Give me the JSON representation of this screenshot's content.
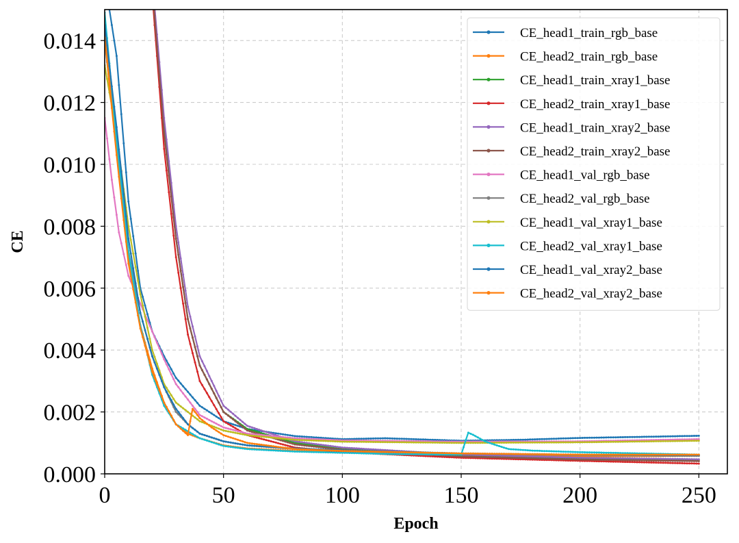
{
  "chart_data": {
    "type": "line",
    "title": "",
    "xlabel": "Epoch",
    "ylabel": "CE",
    "xlim": [
      0,
      262
    ],
    "ylim": [
      0,
      0.015
    ],
    "xticks": [
      0,
      50,
      100,
      150,
      200,
      250
    ],
    "xtick_labels": [
      "0",
      "50",
      "100",
      "150",
      "200",
      "250"
    ],
    "yticks": [
      0,
      0.002,
      0.004,
      0.006,
      0.008,
      0.01,
      0.012,
      0.014
    ],
    "ytick_labels": [
      "0.000",
      "0.002",
      "0.004",
      "0.006",
      "0.008",
      "0.010",
      "0.012",
      "0.014"
    ],
    "grid": true,
    "legend_position": "top-right",
    "series": [
      {
        "name": "CE_head1_train_rgb_base",
        "color": "#1f77b4",
        "x": [
          0,
          5,
          10,
          15,
          20,
          25,
          30,
          40,
          50,
          60,
          80,
          100,
          118,
          150,
          175,
          200,
          230,
          250
        ],
        "y": [
          0.016,
          0.0135,
          0.0088,
          0.006,
          0.0046,
          0.0038,
          0.0031,
          0.0022,
          0.0017,
          0.00145,
          0.00122,
          0.00112,
          0.00115,
          0.00107,
          0.0011,
          0.00116,
          0.0012,
          0.00123
        ]
      },
      {
        "name": "CE_head2_train_rgb_base",
        "color": "#ff7f0e",
        "x": [
          0,
          5,
          10,
          15,
          20,
          25,
          30,
          35,
          40,
          50,
          60,
          80,
          100,
          150,
          200,
          250
        ],
        "y": [
          0.0142,
          0.0106,
          0.007,
          0.0048,
          0.0034,
          0.0023,
          0.0016,
          0.0013,
          0.00115,
          0.00092,
          0.00082,
          0.00074,
          0.0007,
          0.0006,
          0.00056,
          0.00058
        ]
      },
      {
        "name": "CE_head1_train_xray1_base",
        "color": "#2ca02c",
        "x": [
          20,
          22,
          25,
          30,
          35,
          40,
          50,
          60,
          80,
          100,
          150,
          200,
          250
        ],
        "y": [
          0.0158,
          0.014,
          0.0112,
          0.0076,
          0.005,
          0.0035,
          0.002,
          0.00145,
          0.001,
          0.0008,
          0.0006,
          0.0005,
          0.00045
        ]
      },
      {
        "name": "CE_head2_train_xray1_base",
        "color": "#d62728",
        "x": [
          20,
          22,
          25,
          30,
          35,
          40,
          50,
          60,
          80,
          100,
          150,
          200,
          250
        ],
        "y": [
          0.0155,
          0.0135,
          0.0105,
          0.007,
          0.0045,
          0.003,
          0.0017,
          0.00125,
          0.00085,
          0.0007,
          0.00052,
          0.00042,
          0.00033
        ]
      },
      {
        "name": "CE_head1_train_xray2_base",
        "color": "#9467bd",
        "x": [
          20,
          22,
          25,
          30,
          35,
          40,
          50,
          60,
          80,
          100,
          150,
          200,
          250
        ],
        "y": [
          0.016,
          0.0142,
          0.0115,
          0.008,
          0.0054,
          0.0038,
          0.0022,
          0.00155,
          0.00105,
          0.00085,
          0.00062,
          0.00052,
          0.00047
        ]
      },
      {
        "name": "CE_head2_train_xray2_base",
        "color": "#8c564b",
        "x": [
          20,
          22,
          25,
          30,
          35,
          40,
          50,
          60,
          80,
          100,
          150,
          200,
          250
        ],
        "y": [
          0.0158,
          0.0138,
          0.011,
          0.0076,
          0.005,
          0.0035,
          0.002,
          0.0014,
          0.00095,
          0.00078,
          0.00056,
          0.00046,
          0.00041
        ]
      },
      {
        "name": "CE_head1_val_rgb_base",
        "color": "#e377c2",
        "x": [
          0,
          3,
          6,
          10,
          15,
          20,
          25,
          30,
          40,
          50,
          60,
          80,
          100,
          150,
          200,
          250
        ],
        "y": [
          0.0115,
          0.0095,
          0.0078,
          0.0064,
          0.0055,
          0.0046,
          0.0037,
          0.0029,
          0.0019,
          0.0015,
          0.0013,
          0.00115,
          0.00108,
          0.00104,
          0.00105,
          0.00112
        ]
      },
      {
        "name": "CE_head2_val_rgb_base",
        "color": "#7f7f7f",
        "x": [
          0,
          5,
          10,
          15,
          20,
          25,
          30,
          35,
          40,
          50,
          60,
          80,
          100,
          150,
          200,
          250
        ],
        "y": [
          0.014,
          0.0105,
          0.0072,
          0.0052,
          0.0038,
          0.0028,
          0.002,
          0.0016,
          0.0013,
          0.00105,
          0.00092,
          0.0008,
          0.00074,
          0.00065,
          0.0006,
          0.00058
        ]
      },
      {
        "name": "CE_head1_val_xray1_base",
        "color": "#bcbd22",
        "x": [
          0,
          5,
          10,
          15,
          20,
          25,
          30,
          40,
          50,
          60,
          80,
          100,
          150,
          200,
          250
        ],
        "y": [
          0.0132,
          0.011,
          0.008,
          0.0058,
          0.004,
          0.0029,
          0.0023,
          0.0017,
          0.0014,
          0.00125,
          0.0011,
          0.00104,
          0.001,
          0.00102,
          0.00107
        ]
      },
      {
        "name": "CE_head2_val_xray1_base",
        "color": "#17becf",
        "x": [
          0,
          5,
          10,
          15,
          20,
          25,
          30,
          40,
          50,
          60,
          80,
          100,
          120,
          150,
          152,
          153,
          155,
          160,
          165,
          170,
          180,
          200,
          250
        ],
        "y": [
          0.0149,
          0.0108,
          0.0072,
          0.0048,
          0.0032,
          0.0022,
          0.0016,
          0.00115,
          0.0009,
          0.0008,
          0.00072,
          0.00068,
          0.00064,
          0.00062,
          0.0011,
          0.00133,
          0.00126,
          0.00105,
          0.00092,
          0.0008,
          0.00075,
          0.0007,
          0.00062
        ]
      },
      {
        "name": "CE_head1_val_xray2_base",
        "color": "#1f77b4",
        "x": [
          0,
          5,
          10,
          15,
          20,
          25,
          30,
          35,
          40,
          50,
          60,
          80,
          100,
          150,
          200,
          250
        ],
        "y": [
          0.0145,
          0.0112,
          0.0076,
          0.0052,
          0.0038,
          0.0028,
          0.0021,
          0.0016,
          0.0013,
          0.00105,
          0.00092,
          0.00082,
          0.00076,
          0.00066,
          0.00062,
          0.0006
        ]
      },
      {
        "name": "CE_head2_val_xray2_base",
        "color": "#ff7f0e",
        "x": [
          0,
          5,
          10,
          15,
          20,
          25,
          30,
          35,
          36,
          37,
          40,
          45,
          50,
          60,
          80,
          100,
          150,
          200,
          250
        ],
        "y": [
          0.0141,
          0.0103,
          0.0068,
          0.0047,
          0.0033,
          0.0023,
          0.0016,
          0.00125,
          0.0017,
          0.0021,
          0.0018,
          0.0015,
          0.00125,
          0.001,
          0.0008,
          0.00074,
          0.00066,
          0.00062,
          0.00062
        ]
      }
    ]
  }
}
